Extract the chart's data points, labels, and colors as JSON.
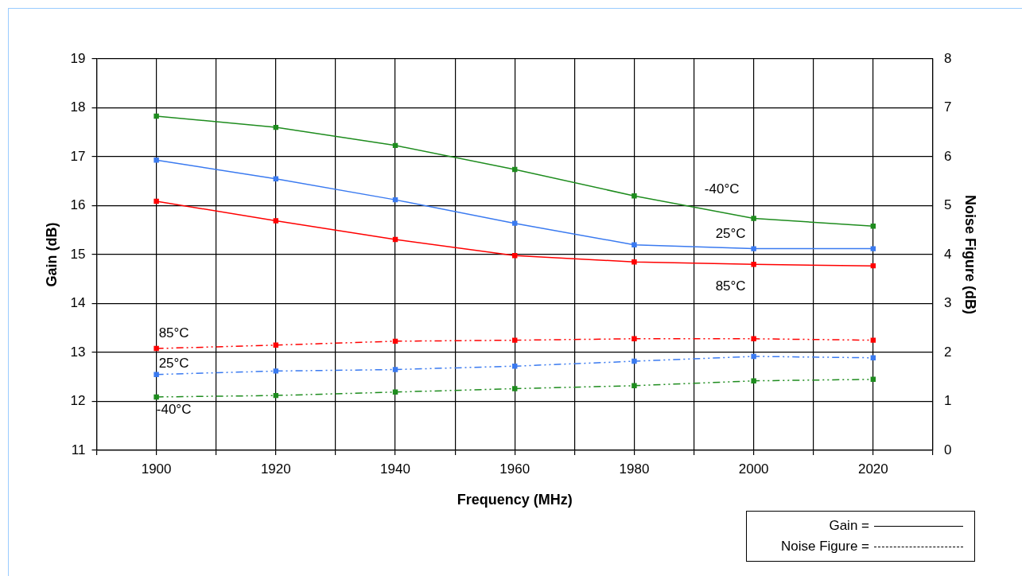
{
  "chart_data": {
    "type": "line",
    "xlabel": "Frequency (MHz)",
    "ylabel": "Gain (dB)",
    "y2label": "Noise Figure (dB)",
    "x": [
      1900,
      1920,
      1940,
      1960,
      1980,
      2000,
      2020
    ],
    "xlim": [
      1890,
      2030
    ],
    "xticks": [
      {
        "value": 1890,
        "label": null
      },
      1900,
      {
        "value": 1910,
        "label": null
      },
      1920,
      {
        "value": 1930,
        "label": null
      },
      1940,
      {
        "value": 1950,
        "label": null
      },
      1960,
      {
        "value": 1970,
        "label": null
      },
      1980,
      {
        "value": 1990,
        "label": null
      },
      2000,
      {
        "value": 2010,
        "label": null
      },
      2020,
      {
        "value": 2030,
        "label": null
      }
    ],
    "ylim": [
      11,
      19
    ],
    "yticks": [
      11,
      12,
      13,
      14,
      15,
      16,
      17,
      18,
      19
    ],
    "y2lim": [
      0,
      8
    ],
    "y2ticks": [
      0,
      1,
      2,
      3,
      4,
      5,
      6,
      7,
      8
    ],
    "grid": true,
    "legend": false,
    "marker": "square",
    "series": [
      {
        "name": "-40°C",
        "color": "#1e8c1e",
        "axis": "y",
        "line_style": "solid",
        "values": [
          17.83,
          17.6,
          17.23,
          16.74,
          16.2,
          15.74,
          15.58
        ]
      },
      {
        "name": "25°C",
        "color": "#3a7af0",
        "axis": "y",
        "line_style": "solid",
        "values": [
          16.93,
          16.55,
          16.12,
          15.64,
          15.2,
          15.12,
          15.12
        ]
      },
      {
        "name": "85°C",
        "color": "#ff0000",
        "axis": "y",
        "line_style": "solid",
        "values": [
          16.09,
          15.69,
          15.31,
          14.98,
          14.85,
          14.8,
          14.77
        ]
      },
      {
        "name": "85°C",
        "color": "#ff0000",
        "axis": "y2",
        "line_style": "dashed",
        "values": [
          2.08,
          2.15,
          2.23,
          2.25,
          2.28,
          2.28,
          2.25
        ]
      },
      {
        "name": "25°C",
        "color": "#3a7af0",
        "axis": "y2",
        "line_style": "dashed",
        "values": [
          1.55,
          1.62,
          1.65,
          1.72,
          1.82,
          1.92,
          1.89
        ]
      },
      {
        "name": "-40°C",
        "color": "#1e8c1e",
        "axis": "y2",
        "line_style": "dashed",
        "values": [
          1.09,
          1.12,
          1.19,
          1.26,
          1.32,
          1.42,
          1.45
        ]
      }
    ],
    "annotations": [
      "Gain =",
      "Noise Figure ="
    ]
  }
}
